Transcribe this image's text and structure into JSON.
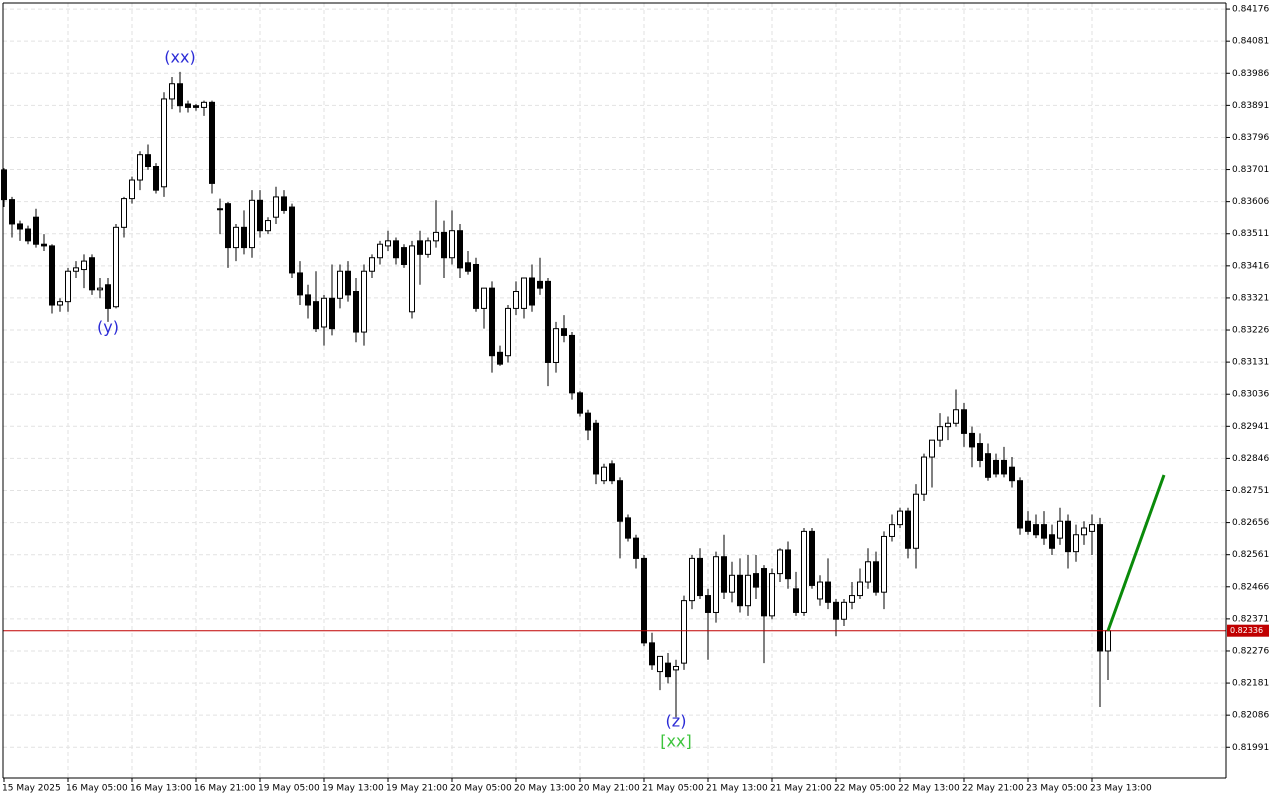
{
  "chart_data": {
    "type": "candlestick",
    "categories": [
      "15 May 2025",
      null,
      null,
      null,
      null,
      null,
      null,
      null,
      "16 May 05:00",
      null,
      null,
      null,
      null,
      null,
      null,
      null,
      "16 May 13:00",
      null,
      null,
      null,
      null,
      null,
      null,
      null,
      "16 May 21:00",
      null,
      null,
      null,
      null,
      null,
      null,
      null,
      "19 May 05:00",
      null,
      null,
      null,
      null,
      null,
      null,
      null,
      "19 May 13:00",
      null,
      null,
      null,
      null,
      null,
      null,
      null,
      "19 May 21:00",
      null,
      null,
      null,
      null,
      null,
      null,
      null,
      "20 May 05:00",
      null,
      null,
      null,
      null,
      null,
      null,
      null,
      "20 May 13:00",
      null,
      null,
      null,
      null,
      null,
      null,
      null,
      "20 May 21:00",
      null,
      null,
      null,
      null,
      null,
      null,
      null,
      "21 May 05:00",
      null,
      null,
      null,
      null,
      null,
      null,
      null,
      "21 May 13:00",
      null,
      null,
      null,
      null,
      null,
      null,
      null,
      "21 May 21:00",
      null,
      null,
      null,
      null,
      null,
      null,
      null,
      "22 May 05:00",
      null,
      null,
      null,
      null,
      null,
      null,
      null,
      "22 May 13:00",
      null,
      null,
      null,
      null,
      null,
      null,
      null,
      "22 May 21:00",
      null,
      null,
      null,
      null,
      null,
      null,
      null,
      "23 May 05:00",
      null,
      null,
      null,
      null,
      null,
      null,
      null,
      "23 May 13:00",
      null,
      null
    ],
    "open": [
      0.837,
      0.83612,
      0.8354,
      0.83525,
      0.8356,
      0.8348,
      0.83475,
      0.833,
      0.8331,
      0.834,
      0.83405,
      0.8344,
      0.83345,
      0.8336,
      0.83295,
      0.8353,
      0.83615,
      0.8367,
      0.83745,
      0.8371,
      0.8365,
      0.8391,
      0.83955,
      0.83895,
      0.8389,
      0.83885,
      0.839,
      0.83585,
      0.836,
      0.8347,
      0.8353,
      0.8347,
      0.8361,
      0.8352,
      0.8356,
      0.8362,
      0.8359,
      0.83395,
      0.8333,
      0.8331,
      0.83235,
      0.8332,
      0.8332,
      0.834,
      0.8334,
      0.8322,
      0.834,
      0.8344,
      0.83475,
      0.8349,
      0.8347,
      0.8328,
      0.8349,
      0.8345,
      0.8349,
      0.83515,
      0.8344,
      0.8352,
      0.83425,
      0.8342,
      0.8329,
      0.8335,
      0.8316,
      0.8315,
      0.8329,
      0.8329,
      0.8338,
      0.8337,
      0.8337,
      0.8313,
      0.8323,
      0.8321,
      0.8304,
      0.8298,
      0.8295,
      0.8278,
      0.8283,
      0.8278,
      0.8267,
      0.8261,
      0.8255,
      0.823,
      0.82215,
      0.8224,
      0.8222,
      0.8224,
      0.82425,
      0.8255,
      0.8244,
      0.8239,
      0.82555,
      0.8245,
      0.825,
      0.8241,
      0.82505,
      0.8252,
      0.8238,
      0.82505,
      0.82575,
      0.8246,
      0.8239,
      0.8263,
      0.8243,
      0.8248,
      0.8242,
      0.8237,
      0.8242,
      0.8244,
      0.8248,
      0.8254,
      0.8245,
      0.82615,
      0.8265,
      0.8269,
      0.8258,
      0.8274,
      0.8285,
      0.829,
      0.8294,
      0.8295,
      0.8299,
      0.8292,
      0.8289,
      0.8286,
      0.8284,
      0.8284,
      0.8282,
      0.8278,
      0.8266,
      0.8265,
      0.8265,
      0.8262,
      0.8261,
      0.8266,
      0.8257,
      0.8262,
      0.8263,
      0.8265,
      0.82276
    ],
    "high": [
      0.83705,
      0.8362,
      0.8355,
      0.83535,
      0.83585,
      0.8351,
      0.8348,
      0.8332,
      0.8341,
      0.8343,
      0.8345,
      0.8345,
      0.8338,
      0.8338,
      0.8354,
      0.8362,
      0.8368,
      0.83755,
      0.83775,
      0.8372,
      0.8393,
      0.83975,
      0.8399,
      0.83905,
      0.83895,
      0.83905,
      0.83905,
      0.83615,
      0.83605,
      0.8354,
      0.8358,
      0.8364,
      0.8364,
      0.8356,
      0.8365,
      0.8364,
      0.836,
      0.8343,
      0.8336,
      0.834,
      0.8333,
      0.8342,
      0.8342,
      0.8343,
      0.8338,
      0.8342,
      0.8345,
      0.8349,
      0.8352,
      0.835,
      0.8348,
      0.8349,
      0.8352,
      0.835,
      0.8361,
      0.8355,
      0.8358,
      0.8354,
      0.8346,
      0.8344,
      0.8335,
      0.8337,
      0.8318,
      0.833,
      0.8337,
      0.8338,
      0.8342,
      0.8344,
      0.8338,
      0.8325,
      0.8327,
      0.8322,
      0.83045,
      0.8299,
      0.8296,
      0.8283,
      0.8284,
      0.8279,
      0.8268,
      0.8262,
      0.8256,
      0.8233,
      0.8226,
      0.8227,
      0.8225,
      0.8244,
      0.8256,
      0.8258,
      0.8246,
      0.8257,
      0.8262,
      0.8254,
      0.8255,
      0.8256,
      0.8256,
      0.8253,
      0.8252,
      0.8258,
      0.826,
      0.8251,
      0.8264,
      0.8264,
      0.825,
      0.8255,
      0.8243,
      0.8243,
      0.8248,
      0.8252,
      0.8258,
      0.8257,
      0.8263,
      0.8268,
      0.827,
      0.827,
      0.8277,
      0.8286,
      0.829,
      0.8298,
      0.8297,
      0.8305,
      0.8301,
      0.8294,
      0.8292,
      0.8289,
      0.8286,
      0.8288,
      0.8285,
      0.8279,
      0.8269,
      0.8268,
      0.8269,
      0.8265,
      0.827,
      0.8268,
      0.8265,
      0.8266,
      0.8268,
      0.8267,
      0.82336
    ],
    "low": [
      0.8359,
      0.835,
      0.8349,
      0.8348,
      0.8347,
      0.8346,
      0.83275,
      0.8328,
      0.8328,
      0.8338,
      0.8335,
      0.8333,
      0.8332,
      0.8325,
      0.8329,
      0.835,
      0.836,
      0.8364,
      0.837,
      0.8363,
      0.8362,
      0.8388,
      0.8387,
      0.8387,
      0.83875,
      0.8386,
      0.8363,
      0.8351,
      0.8341,
      0.8343,
      0.8345,
      0.8344,
      0.835,
      0.8351,
      0.8354,
      0.8357,
      0.8338,
      0.833,
      0.8326,
      0.8322,
      0.8318,
      0.8321,
      0.8329,
      0.8331,
      0.8319,
      0.8318,
      0.8338,
      0.8342,
      0.8346,
      0.8342,
      0.8341,
      0.8326,
      0.8336,
      0.8344,
      0.8347,
      0.8338,
      0.8342,
      0.8338,
      0.8339,
      0.8328,
      0.8323,
      0.831,
      0.8312,
      0.8313,
      0.8327,
      0.8326,
      0.8328,
      0.8333,
      0.8306,
      0.831,
      0.8319,
      0.8302,
      0.8297,
      0.829,
      0.8277,
      0.8277,
      0.8277,
      0.8255,
      0.826,
      0.8252,
      0.8229,
      0.8222,
      0.8216,
      0.8218,
      0.8208,
      0.8222,
      0.824,
      0.8243,
      0.8225,
      0.8236,
      0.8243,
      0.8242,
      0.8239,
      0.8238,
      0.8243,
      0.8224,
      0.8237,
      0.8248,
      0.8246,
      0.8238,
      0.8238,
      0.8246,
      0.8241,
      0.824,
      0.8232,
      0.8235,
      0.824,
      0.8243,
      0.8246,
      0.8244,
      0.824,
      0.826,
      0.8264,
      0.8255,
      0.8252,
      0.8272,
      0.8276,
      0.8288,
      0.829,
      0.8294,
      0.8288,
      0.8282,
      0.8282,
      0.8278,
      0.8279,
      0.8279,
      0.8276,
      0.8262,
      0.8262,
      0.8261,
      0.8259,
      0.8256,
      0.8259,
      0.8252,
      0.8254,
      0.8259,
      0.8256,
      0.8211,
      0.8219
    ],
    "close": [
      0.83612,
      0.8354,
      0.83525,
      0.8349,
      0.8348,
      0.83475,
      0.833,
      0.8331,
      0.834,
      0.8341,
      0.8343,
      0.83345,
      0.8335,
      0.8329,
      0.8353,
      0.83615,
      0.8367,
      0.83745,
      0.8371,
      0.8364,
      0.8391,
      0.83955,
      0.8389,
      0.83885,
      0.83885,
      0.839,
      0.8366,
      0.83585,
      0.8347,
      0.8353,
      0.8347,
      0.8361,
      0.8352,
      0.8355,
      0.8362,
      0.8358,
      0.83395,
      0.8333,
      0.833,
      0.8323,
      0.8332,
      0.8323,
      0.834,
      0.8333,
      0.8322,
      0.834,
      0.8344,
      0.8348,
      0.8349,
      0.8344,
      0.8342,
      0.83475,
      0.8345,
      0.8349,
      0.83515,
      0.8344,
      0.8352,
      0.8341,
      0.834,
      0.8329,
      0.8335,
      0.8315,
      0.83125,
      0.8329,
      0.8334,
      0.8338,
      0.833,
      0.8335,
      0.8313,
      0.8323,
      0.8321,
      0.8304,
      0.8298,
      0.8293,
      0.828,
      0.8282,
      0.8278,
      0.8266,
      0.8261,
      0.8255,
      0.823,
      0.82235,
      0.8226,
      0.822,
      0.8223,
      0.82425,
      0.8255,
      0.8244,
      0.8239,
      0.82555,
      0.8245,
      0.825,
      0.8241,
      0.825,
      0.82465,
      0.8238,
      0.82505,
      0.82575,
      0.8249,
      0.8239,
      0.8263,
      0.8247,
      0.8248,
      0.8242,
      0.8237,
      0.8242,
      0.8244,
      0.8248,
      0.8254,
      0.8245,
      0.82615,
      0.8265,
      0.8269,
      0.8258,
      0.8274,
      0.8285,
      0.829,
      0.8294,
      0.8295,
      0.8299,
      0.8292,
      0.8288,
      0.8284,
      0.8279,
      0.828,
      0.828,
      0.8278,
      0.8264,
      0.8263,
      0.8262,
      0.8261,
      0.8258,
      0.8266,
      0.8257,
      0.8262,
      0.8264,
      0.8265,
      0.82276,
      0.82336
    ],
    "ylim": [
      0.819,
      0.84194
    ],
    "yticks": [
      0.84176,
      0.84081,
      0.83986,
      0.83891,
      0.83796,
      0.83701,
      0.83606,
      0.83511,
      0.83416,
      0.83321,
      0.83226,
      0.83131,
      0.83036,
      0.82941,
      0.82846,
      0.82751,
      0.82656,
      0.82561,
      0.82466,
      0.82371,
      0.82276,
      0.82181,
      0.82086,
      0.81991
    ],
    "grid": true,
    "up_color": "#ffffff",
    "down_color": "#000000",
    "price_line": 0.82336,
    "price_line_color": "#c00000",
    "annotations": [
      {
        "text": "(xx)",
        "x": 22,
        "y": 0.84031,
        "color": "#2b2bd6"
      },
      {
        "text": "(y)",
        "x": 13,
        "y": 0.83232,
        "color": "#2b2bd6"
      },
      {
        "text": "(z)",
        "x": 84,
        "y": 0.82066,
        "color": "#2b2bd6"
      },
      {
        "text": "[xx]",
        "x": 84,
        "y": 0.82006,
        "color": "#3cc43c"
      }
    ],
    "projection": {
      "x": [
        138,
        145
      ],
      "values": [
        0.82336,
        0.82797
      ],
      "color": "#0a8a0a"
    }
  }
}
